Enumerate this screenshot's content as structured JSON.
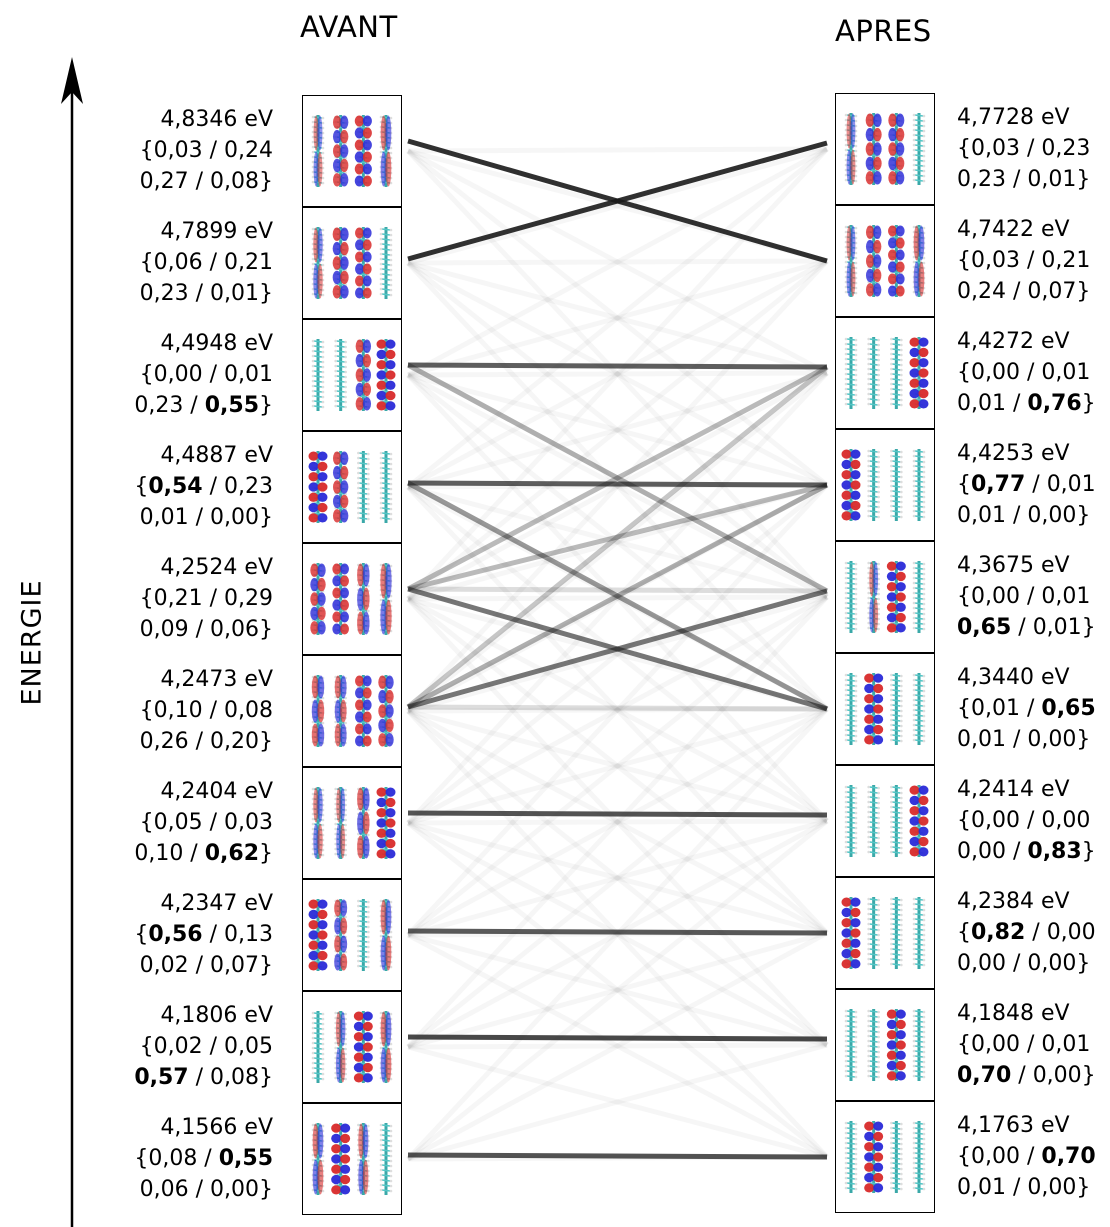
{
  "header": {
    "left_title": "AVANT",
    "right_title": "APRES",
    "axis_label": "ENERGIE"
  },
  "avant": [
    {
      "energy": "4,8346 eV",
      "w": [
        "0,03",
        "0,24",
        "0,27",
        "0,08"
      ],
      "bold": -1,
      "blobs": [
        0.15,
        0.7,
        0.85,
        0.3
      ]
    },
    {
      "energy": "4,7899 eV",
      "w": [
        "0,06",
        "0,21",
        "0,23",
        "0,01"
      ],
      "bold": -1,
      "blobs": [
        0.2,
        0.75,
        0.8,
        0.1
      ]
    },
    {
      "energy": "4,4948 eV",
      "w": [
        "0,00",
        "0,01",
        "0,23",
        "0,55"
      ],
      "bold": 3,
      "blobs": [
        0.05,
        0.1,
        0.7,
        1.0
      ]
    },
    {
      "energy": "4,4887 eV",
      "w": [
        "0,54",
        "0,23",
        "0,01",
        "0,00"
      ],
      "bold": 0,
      "blobs": [
        1.0,
        0.7,
        0.1,
        0.05
      ]
    },
    {
      "energy": "4,2524 eV",
      "w": [
        "0,21",
        "0,29",
        "0,09",
        "0,06"
      ],
      "bold": -1,
      "blobs": [
        0.7,
        0.8,
        0.45,
        0.35
      ]
    },
    {
      "energy": "4,2473 eV",
      "w": [
        "0,10",
        "0,08",
        "0,26",
        "0,20"
      ],
      "bold": -1,
      "blobs": [
        0.45,
        0.4,
        0.8,
        0.7
      ]
    },
    {
      "energy": "4,2404 eV",
      "w": [
        "0,05",
        "0,03",
        "0,10",
        "0,62"
      ],
      "bold": 3,
      "blobs": [
        0.2,
        0.15,
        0.45,
        1.0
      ]
    },
    {
      "energy": "4,2347 eV",
      "w": [
        "0,56",
        "0,13",
        "0,02",
        "0,07"
      ],
      "bold": 0,
      "blobs": [
        1.0,
        0.5,
        0.1,
        0.3
      ]
    },
    {
      "energy": "4,1806 eV",
      "w": [
        "0,02",
        "0,05",
        "0,57",
        "0,08"
      ],
      "bold": 2,
      "blobs": [
        0.1,
        0.2,
        1.0,
        0.3
      ]
    },
    {
      "energy": "4,1566 eV",
      "w": [
        "0,08",
        "0,55",
        "0,06",
        "0,00"
      ],
      "bold": 1,
      "blobs": [
        0.3,
        1.0,
        0.25,
        0.05
      ]
    }
  ],
  "apres": [
    {
      "energy": "4,7728 eV",
      "w": [
        "0,03",
        "0,23",
        "0,23",
        "0,01"
      ],
      "bold": -1,
      "blobs": [
        0.15,
        0.75,
        0.75,
        0.1
      ]
    },
    {
      "energy": "4,7422 eV",
      "w": [
        "0,03",
        "0,21",
        "0,24",
        "0,07"
      ],
      "bold": -1,
      "blobs": [
        0.15,
        0.7,
        0.8,
        0.3
      ]
    },
    {
      "energy": "4,4272 eV",
      "w": [
        "0,00",
        "0,01",
        "0,01",
        "0,76"
      ],
      "bold": 3,
      "blobs": [
        0.05,
        0.05,
        0.05,
        1.0
      ]
    },
    {
      "energy": "4,4253 eV",
      "w": [
        "0,77",
        "0,01",
        "0,01",
        "0,00"
      ],
      "bold": 0,
      "blobs": [
        1.0,
        0.1,
        0.05,
        0.05
      ]
    },
    {
      "energy": "4,3675 eV",
      "w": [
        "0,00",
        "0,01",
        "0,65",
        "0,01"
      ],
      "bold": 2,
      "blobs": [
        0.05,
        0.15,
        1.0,
        0.05
      ]
    },
    {
      "energy": "4,3440 eV",
      "w": [
        "0,01",
        "0,65",
        "0,01",
        "0,00"
      ],
      "bold": 1,
      "blobs": [
        0.1,
        1.0,
        0.1,
        0.05
      ]
    },
    {
      "energy": "4,2414 eV",
      "w": [
        "0,00",
        "0,00",
        "0,00",
        "0,83"
      ],
      "bold": 3,
      "blobs": [
        0.05,
        0.05,
        0.05,
        1.0
      ]
    },
    {
      "energy": "4,2384 eV",
      "w": [
        "0,82",
        "0,00",
        "0,00",
        "0,00"
      ],
      "bold": 0,
      "blobs": [
        1.0,
        0.05,
        0.05,
        0.05
      ]
    },
    {
      "energy": "4,1848 eV",
      "w": [
        "0,00",
        "0,01",
        "0,70",
        "0,00"
      ],
      "bold": 2,
      "blobs": [
        0.05,
        0.1,
        1.0,
        0.05
      ]
    },
    {
      "energy": "4,1763 eV",
      "w": [
        "0,00",
        "0,70",
        "0,01",
        "0,00"
      ],
      "bold": 1,
      "blobs": [
        0.05,
        1.0,
        0.1,
        0.05
      ]
    }
  ],
  "correlations": [
    {
      "from": 0,
      "to": 1,
      "strength": 0.9
    },
    {
      "from": 1,
      "to": 0,
      "strength": 0.9
    },
    {
      "from": 2,
      "to": 2,
      "strength": 0.7
    },
    {
      "from": 3,
      "to": 3,
      "strength": 0.7
    },
    {
      "from": 6,
      "to": 6,
      "strength": 0.75
    },
    {
      "from": 7,
      "to": 7,
      "strength": 0.72
    },
    {
      "from": 8,
      "to": 8,
      "strength": 0.8
    },
    {
      "from": 9,
      "to": 9,
      "strength": 0.75
    },
    {
      "from": 4,
      "to": 5,
      "strength": 0.6
    },
    {
      "from": 5,
      "to": 4,
      "strength": 0.6
    },
    {
      "from": 3,
      "to": 5,
      "strength": 0.45
    },
    {
      "from": 2,
      "to": 4,
      "strength": 0.35
    },
    {
      "from": 4,
      "to": 2,
      "strength": 0.3
    },
    {
      "from": 5,
      "to": 3,
      "strength": 0.35
    },
    {
      "from": 4,
      "to": 3,
      "strength": 0.3
    },
    {
      "from": 5,
      "to": 2,
      "strength": 0.25
    },
    {
      "from": 4,
      "to": 4,
      "strength": 0.15
    },
    {
      "from": 5,
      "to": 5,
      "strength": 0.15
    }
  ]
}
